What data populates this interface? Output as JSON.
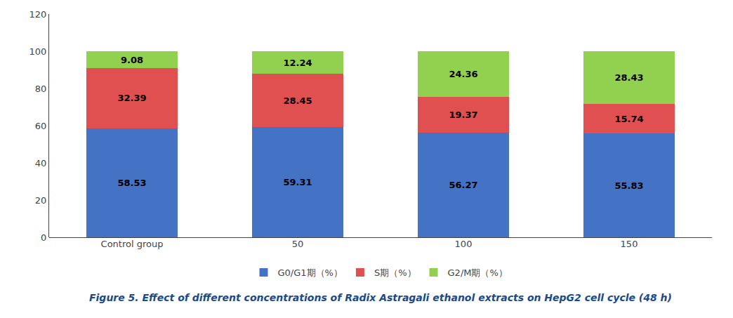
{
  "chart_data": {
    "type": "bar",
    "stacked": true,
    "data_labels": true,
    "grid": false,
    "legend": "bottom",
    "title": "Figure 5. Effect of different concentrations of Radix Astragali ethanol extracts on HepG2 cell cycle (48 h)",
    "categories": [
      "Control group",
      "50",
      "100",
      "150"
    ],
    "series": [
      {
        "name": "G0/G1期（%）",
        "color": "#4472C4",
        "values": [
          58.53,
          59.31,
          56.27,
          55.83
        ]
      },
      {
        "name": "S期（%）",
        "color": "#E05050",
        "values": [
          32.39,
          28.45,
          19.37,
          15.74
        ]
      },
      {
        "name": "G2/M期（%）",
        "color": "#92D050",
        "values": [
          9.08,
          12.24,
          24.36,
          28.43
        ]
      }
    ],
    "ylim": [
      0,
      120
    ],
    "yticks": [
      0,
      20,
      40,
      60,
      80,
      100,
      120
    ]
  }
}
